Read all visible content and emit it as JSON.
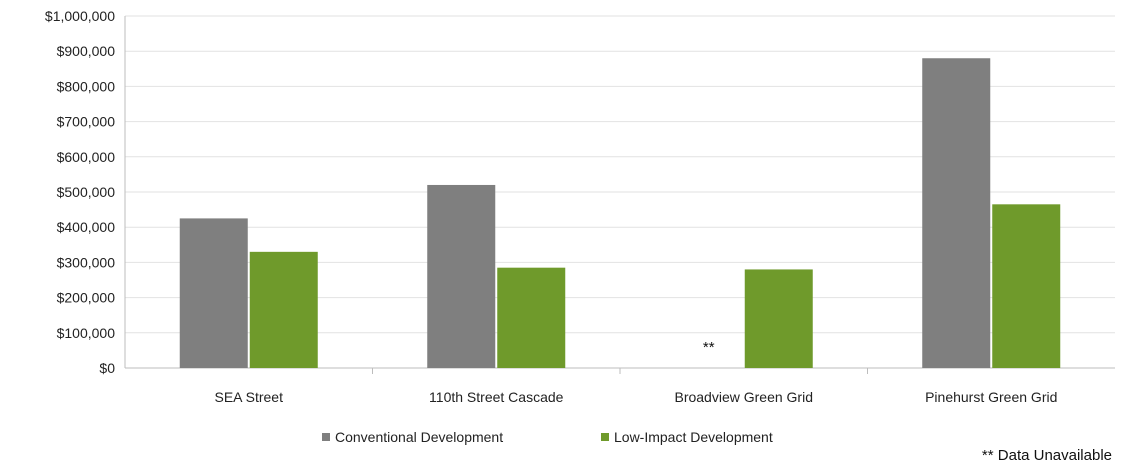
{
  "chart_data": {
    "type": "bar",
    "categories": [
      "SEA Street",
      "110th Street Cascade",
      "Broadview Green Grid",
      "Pinehurst Green Grid"
    ],
    "series": [
      {
        "name": "Conventional Development",
        "color": "#7f7f7f",
        "values": [
          425000,
          520000,
          null,
          880000
        ]
      },
      {
        "name": "Low-Impact Development",
        "color": "#6f9a2b",
        "values": [
          330000,
          285000,
          280000,
          465000
        ]
      }
    ],
    "missing_marker": "**",
    "ylim": [
      0,
      1000000
    ],
    "yticks": [
      "$0",
      "$100,000",
      "$200,000",
      "$300,000",
      "$400,000",
      "$500,000",
      "$600,000",
      "$700,000",
      "$800,000",
      "$900,000",
      "$1,000,000"
    ],
    "grid": true,
    "legend": "bottom",
    "footnote": "** Data Unavailable"
  }
}
